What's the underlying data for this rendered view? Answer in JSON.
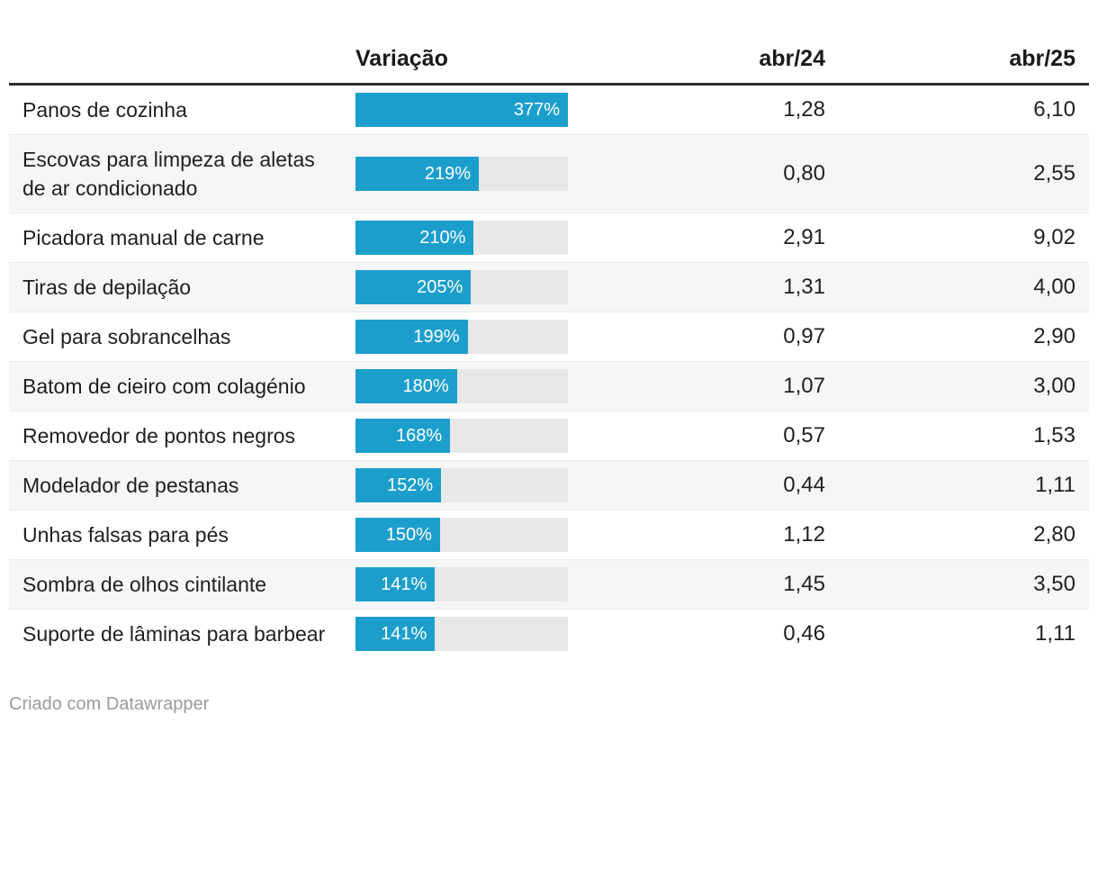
{
  "header": {
    "product_col": "",
    "variation_col": "Variação",
    "col_24": "abr/24",
    "col_25": "abr/25"
  },
  "rows": [
    {
      "label": "Panos de cozinha",
      "percent": 377,
      "percent_label": "377%",
      "abr24": "1,28",
      "abr25": "6,10"
    },
    {
      "label": "Escovas para limpeza de aletas de ar condicionado",
      "percent": 219,
      "percent_label": "219%",
      "abr24": "0,80",
      "abr25": "2,55"
    },
    {
      "label": "Picadora manual de carne",
      "percent": 210,
      "percent_label": "210%",
      "abr24": "2,91",
      "abr25": "9,02"
    },
    {
      "label": "Tiras de depilação",
      "percent": 205,
      "percent_label": "205%",
      "abr24": "1,31",
      "abr25": "4,00"
    },
    {
      "label": "Gel para sobrancelhas",
      "percent": 199,
      "percent_label": "199%",
      "abr24": "0,97",
      "abr25": "2,90"
    },
    {
      "label": "Batom de cieiro com colagénio",
      "percent": 180,
      "percent_label": "180%",
      "abr24": "1,07",
      "abr25": "3,00"
    },
    {
      "label": "Removedor de pontos negros",
      "percent": 168,
      "percent_label": "168%",
      "abr24": "0,57",
      "abr25": "1,53"
    },
    {
      "label": "Modelador de pestanas",
      "percent": 152,
      "percent_label": "152%",
      "abr24": "0,44",
      "abr25": "1,11"
    },
    {
      "label": "Unhas falsas para pés",
      "percent": 150,
      "percent_label": "150%",
      "abr24": "1,12",
      "abr25": "2,80"
    },
    {
      "label": "Sombra de olhos cintilante",
      "percent": 141,
      "percent_label": "141%",
      "abr24": "1,45",
      "abr25": "3,50"
    },
    {
      "label": "Suporte de lâminas para barbear",
      "percent": 141,
      "percent_label": "141%",
      "abr24": "0,46",
      "abr25": "1,11"
    }
  ],
  "bar_max_percent": 377,
  "footer": {
    "credit": "Criado com Datawrapper"
  },
  "colors": {
    "bar_fill": "#1c9ecd",
    "bar_track": "#e8e8e8",
    "alt_row_bg": "#f6f6f6",
    "header_border": "#2e2e2e",
    "text": "#1f1f1f",
    "bar_label_text": "#ffffff",
    "footer_text": "#9b9b9b"
  },
  "chart_data": {
    "type": "bar",
    "orientation": "horizontal",
    "title": "",
    "categories": [
      "Panos de cozinha",
      "Escovas para limpeza de aletas de ar condicionado",
      "Picadora manual de carne",
      "Tiras de depilação",
      "Gel para sobrancelhas",
      "Batom de cieiro com colagénio",
      "Removedor de pontos negros",
      "Modelador de pestanas",
      "Unhas falsas para pés",
      "Sombra de olhos cintilante",
      "Suporte de lâminas para barbear"
    ],
    "series": [
      {
        "name": "Variação",
        "unit": "%",
        "values": [
          377,
          219,
          210,
          205,
          199,
          180,
          168,
          152,
          150,
          141,
          141
        ]
      },
      {
        "name": "abr/24",
        "values": [
          1.28,
          0.8,
          2.91,
          1.31,
          0.97,
          1.07,
          0.57,
          0.44,
          1.12,
          1.45,
          0.46
        ]
      },
      {
        "name": "abr/25",
        "values": [
          6.1,
          2.55,
          9.02,
          4.0,
          2.9,
          3.0,
          1.53,
          1.11,
          2.8,
          3.5,
          1.11
        ]
      }
    ],
    "xlim": [
      0,
      377
    ],
    "grid": false,
    "legend_position": "none",
    "annotations": [
      "Criado com Datawrapper"
    ]
  }
}
